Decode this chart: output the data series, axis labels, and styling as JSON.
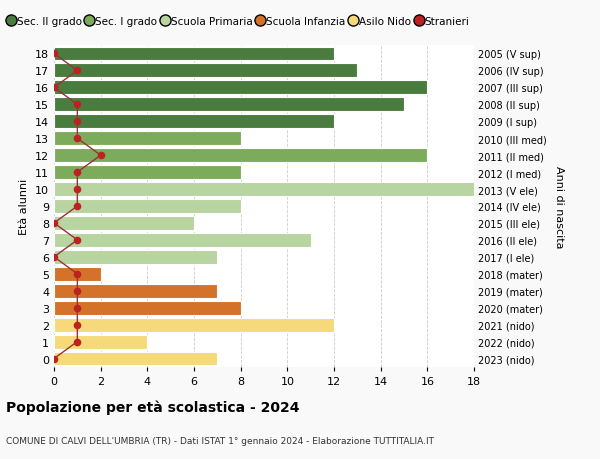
{
  "ages": [
    18,
    17,
    16,
    15,
    14,
    13,
    12,
    11,
    10,
    9,
    8,
    7,
    6,
    5,
    4,
    3,
    2,
    1,
    0
  ],
  "right_labels": [
    "2005 (V sup)",
    "2006 (IV sup)",
    "2007 (III sup)",
    "2008 (II sup)",
    "2009 (I sup)",
    "2010 (III med)",
    "2011 (II med)",
    "2012 (I med)",
    "2013 (V ele)",
    "2014 (IV ele)",
    "2015 (III ele)",
    "2016 (II ele)",
    "2017 (I ele)",
    "2018 (mater)",
    "2019 (mater)",
    "2020 (mater)",
    "2021 (nido)",
    "2022 (nido)",
    "2023 (nido)"
  ],
  "bar_values": [
    12,
    13,
    16,
    15,
    12,
    8,
    16,
    8,
    18,
    8,
    6,
    11,
    7,
    2,
    7,
    8,
    12,
    4,
    7
  ],
  "bar_colors": [
    "#4a7c3f",
    "#4a7c3f",
    "#4a7c3f",
    "#4a7c3f",
    "#4a7c3f",
    "#7dab5c",
    "#7dab5c",
    "#7dab5c",
    "#b8d4a0",
    "#b8d4a0",
    "#b8d4a0",
    "#b8d4a0",
    "#b8d4a0",
    "#d4722a",
    "#d4722a",
    "#d4722a",
    "#f5d97a",
    "#f5d97a",
    "#f5d97a"
  ],
  "stranieri_values": [
    0,
    1,
    0,
    1,
    1,
    1,
    2,
    1,
    1,
    1,
    0,
    1,
    0,
    1,
    1,
    1,
    1,
    1,
    0
  ],
  "stranieri_color": "#bb2222",
  "stranieri_line_color": "#993333",
  "legend_labels": [
    "Sec. II grado",
    "Sec. I grado",
    "Scuola Primaria",
    "Scuola Infanzia",
    "Asilo Nido",
    "Stranieri"
  ],
  "legend_colors": [
    "#4a7c3f",
    "#7dab5c",
    "#b8d4a0",
    "#d4722a",
    "#f5d97a",
    "#bb2222"
  ],
  "left_ylabel": "Età alunni",
  "right_ylabel": "Anni di nascita",
  "title": "Popolazione per età scolastica - 2024",
  "subtitle": "COMUNE DI CALVI DELL'UMBRIA (TR) - Dati ISTAT 1° gennaio 2024 - Elaborazione TUTTITALIA.IT",
  "xlim": [
    0,
    18
  ],
  "ylim": [
    -0.5,
    18.5
  ],
  "background_color": "#f9f9f9",
  "bar_background": "#ffffff",
  "grid_color": "#cccccc",
  "bar_height": 0.82
}
